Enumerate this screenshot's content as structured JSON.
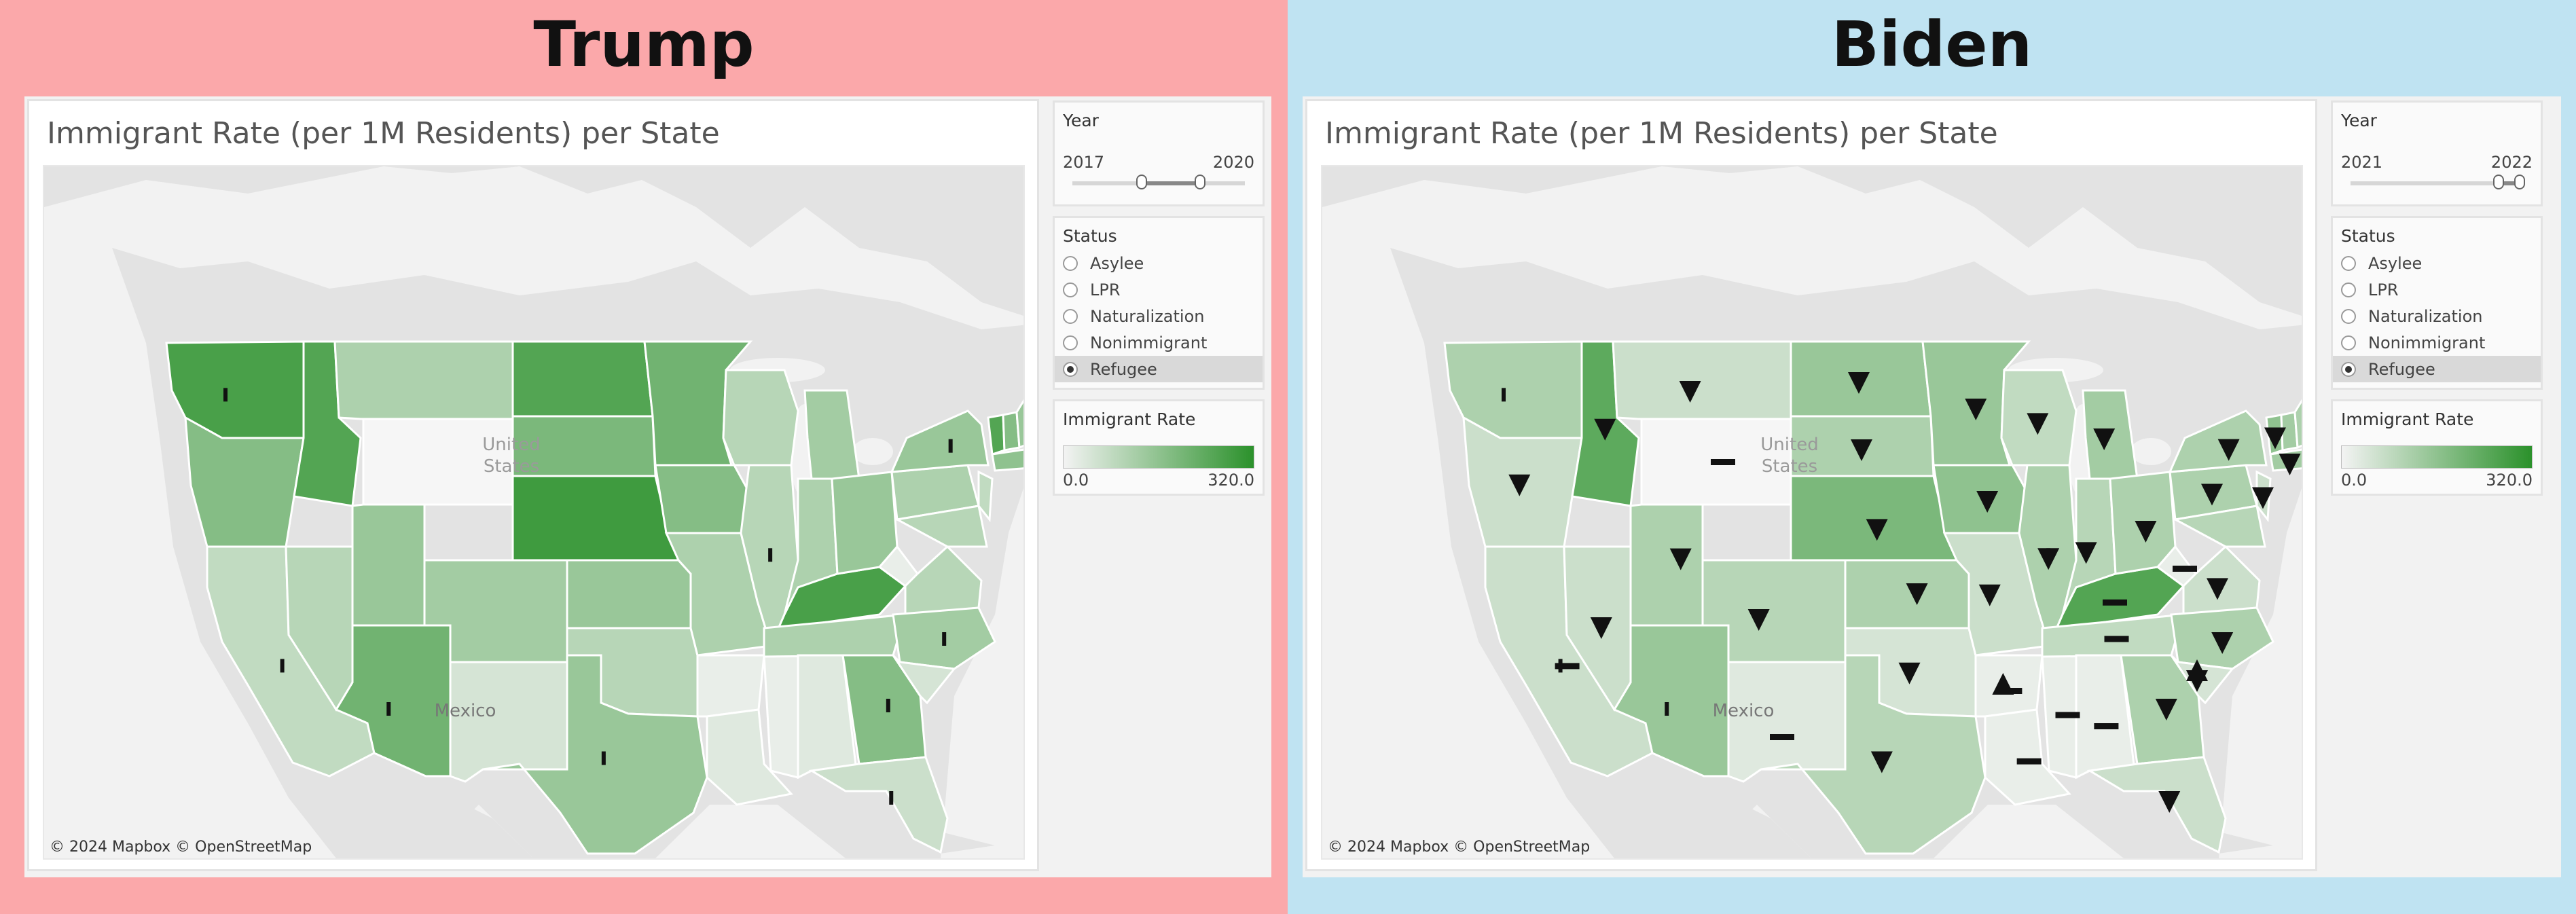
{
  "panels": [
    {
      "side": "left",
      "heading": "Trump",
      "dashboard": {
        "map_title": "Immigrant Rate (per 1M Residents) per State",
        "map_labels": {
          "country_us_line1": "United",
          "country_us_line2": "States",
          "country_mexico": "Mexico"
        },
        "attribution": "© 2024 Mapbox © OpenStreetMap",
        "year_filter": {
          "title": "Year",
          "min_label": "2017",
          "max_label": "2020",
          "range_start": 0.4,
          "range_end": 0.74
        },
        "status_filter": {
          "title": "Status",
          "options": [
            "Asylee",
            "LPR",
            "Naturalization",
            "Nonimmigrant",
            "Refugee"
          ],
          "selected": "Refugee"
        },
        "legend": {
          "title": "Immigrant Rate",
          "min_label": "0.0",
          "max_label": "320.0",
          "color_low": "#f3f3f3",
          "color_high": "#2b912b"
        }
      }
    },
    {
      "side": "right",
      "heading": "Biden",
      "dashboard": {
        "map_title": "Immigrant Rate (per 1M Residents) per State",
        "map_labels": {
          "country_us_line1": "United",
          "country_us_line2": "States",
          "country_mexico": "Mexico"
        },
        "attribution": "© 2024 Mapbox © OpenStreetMap",
        "year_filter": {
          "title": "Year",
          "min_label": "2021",
          "max_label": "2022",
          "range_start": 0.86,
          "range_end": 0.98
        },
        "status_filter": {
          "title": "Status",
          "options": [
            "Asylee",
            "LPR",
            "Naturalization",
            "Nonimmigrant",
            "Refugee"
          ],
          "selected": "Refugee"
        },
        "legend": {
          "title": "Immigrant Rate",
          "min_label": "0.0",
          "max_label": "320.0",
          "color_low": "#f3f3f3",
          "color_high": "#2b912b"
        }
      }
    }
  ],
  "map_background": {
    "land": "#e3e3e3",
    "water": "#f2f2f2",
    "border": "#ffffff"
  },
  "state_shading": {
    "left": {
      "WA": 0.85,
      "OR": 0.55,
      "CA": 0.25,
      "ID": 0.8,
      "NV": 0.3,
      "AZ": 0.65,
      "MT": 0.35,
      "WY": 0.0,
      "UT": 0.45,
      "CO": 0.4,
      "NM": 0.15,
      "ND": 0.8,
      "SD": 0.6,
      "NE": 0.9,
      "KS": 0.45,
      "OK": 0.3,
      "TX": 0.45,
      "MN": 0.65,
      "IA": 0.55,
      "MO": 0.35,
      "AR": 0.05,
      "LA": 0.1,
      "WI": 0.3,
      "IL": 0.3,
      "MS": 0.05,
      "MI": 0.4,
      "IN": 0.35,
      "KY": 0.85,
      "TN": 0.35,
      "AL": 0.1,
      "GA": 0.55,
      "FL": 0.2,
      "OH": 0.45,
      "WV": 0.05,
      "VA": 0.3,
      "NC": 0.4,
      "SC": 0.15,
      "PA": 0.35,
      "NY": 0.45,
      "ME": 0.45,
      "VT": 0.8,
      "NH": 0.55,
      "MA": 0.5,
      "MD": 0.3,
      "NJ": 0.25
    },
    "right": {
      "WA": 0.35,
      "OR": 0.2,
      "CA": 0.2,
      "ID": 0.75,
      "NV": 0.2,
      "AZ": 0.45,
      "MT": 0.2,
      "WY": 0.0,
      "UT": 0.35,
      "CO": 0.3,
      "NM": 0.1,
      "ND": 0.45,
      "SD": 0.35,
      "NE": 0.6,
      "KS": 0.35,
      "OK": 0.15,
      "TX": 0.3,
      "MN": 0.45,
      "IA": 0.5,
      "MO": 0.2,
      "AR": 0.05,
      "LA": 0.05,
      "WI": 0.25,
      "IL": 0.35,
      "MS": 0.05,
      "MI": 0.4,
      "IN": 0.3,
      "KY": 0.8,
      "TN": 0.25,
      "AL": 0.05,
      "GA": 0.35,
      "FL": 0.2,
      "OH": 0.35,
      "WV": 0.05,
      "VA": 0.2,
      "NC": 0.35,
      "SC": 0.15,
      "PA": 0.35,
      "NY": 0.35,
      "ME": 0.35,
      "VT": 0.5,
      "NH": 0.4,
      "MA": 0.4,
      "MD": 0.3,
      "NJ": 0.2
    }
  },
  "state_markers": {
    "left": {
      "bar": [
        "WA",
        "CA",
        "AZ",
        "TX",
        "IL",
        "NY",
        "NC",
        "GA",
        "FL"
      ],
      "minus": [],
      "down": [],
      "up": []
    },
    "right": {
      "bar": [
        "WA",
        "CA",
        "AZ",
        "TX",
        "IL",
        "FL",
        "NC"
      ],
      "minus": [
        "CA",
        "WY",
        "NM",
        "AR",
        "MS",
        "AL",
        "LA",
        "WV",
        "KY",
        "TN"
      ],
      "down": [
        "OR",
        "ID",
        "NV",
        "UT",
        "CO",
        "MT",
        "ND",
        "SD",
        "NE",
        "KS",
        "OK",
        "TX",
        "MN",
        "IA",
        "MO",
        "WI",
        "IL",
        "MI",
        "IN",
        "OH",
        "GA",
        "NC",
        "SC",
        "VA",
        "PA",
        "NY",
        "VT",
        "ME",
        "MA",
        "NJ",
        "FL"
      ],
      "up": [
        "AR",
        "SC"
      ]
    }
  }
}
